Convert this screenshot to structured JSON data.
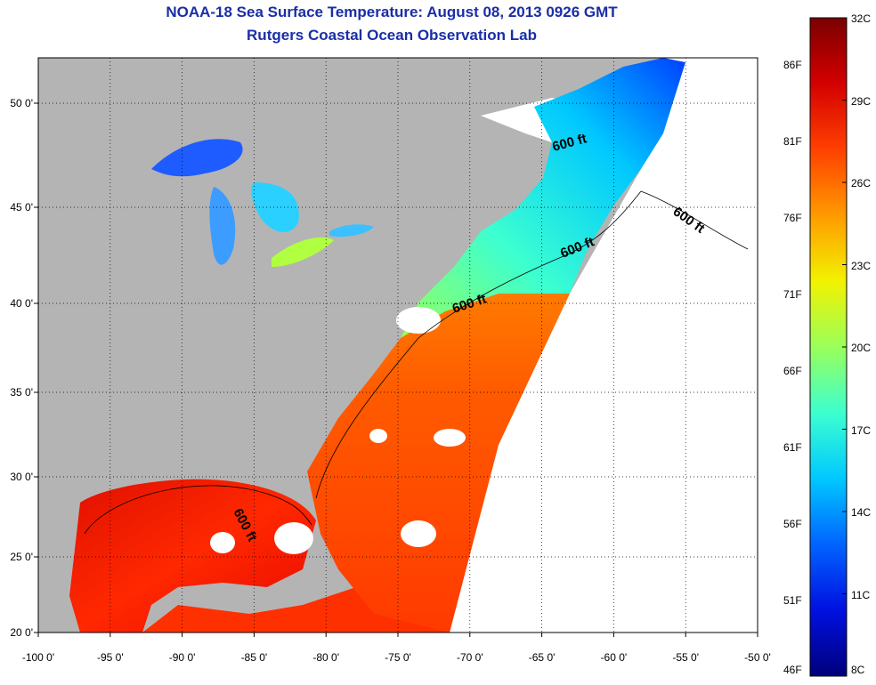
{
  "header": {
    "title": "NOAA-18 Sea Surface Temperature:  August 08, 2013 0926 GMT",
    "subtitle": "Rutgers Coastal Ocean Observation Lab"
  },
  "map": {
    "lon_labels": [
      "-100 0'",
      "-95 0'",
      "-90 0'",
      "-85 0'",
      "-80 0'",
      "-75 0'",
      "-70 0'",
      "-65 0'",
      "-60 0'",
      "-55 0'",
      "-50 0'"
    ],
    "lat_labels": [
      "20 0'",
      "25 0'",
      "30 0'",
      "35 0'",
      "40 0'",
      "45 0'",
      "50 0'"
    ],
    "contour_labels": [
      "600 ft",
      "600 ft",
      "600 ft",
      "600 ft",
      "600 ft"
    ],
    "land_color": "#b4b4b4",
    "no_data_color": "#ffffff"
  },
  "colorbar": {
    "celsius_labels": [
      "32C",
      "29C",
      "26C",
      "23C",
      "20C",
      "17C",
      "14C",
      "11C",
      "8C"
    ],
    "fahrenheit_labels": [
      "86F",
      "81F",
      "76F",
      "71F",
      "66F",
      "61F",
      "56F",
      "51F",
      "46F"
    ],
    "colors": [
      "#7a0000",
      "#d40000",
      "#ff4000",
      "#ff9a00",
      "#f2f200",
      "#9aff5a",
      "#3cffd0",
      "#00c8ff",
      "#0064ff",
      "#0010e0",
      "#00007a"
    ]
  }
}
